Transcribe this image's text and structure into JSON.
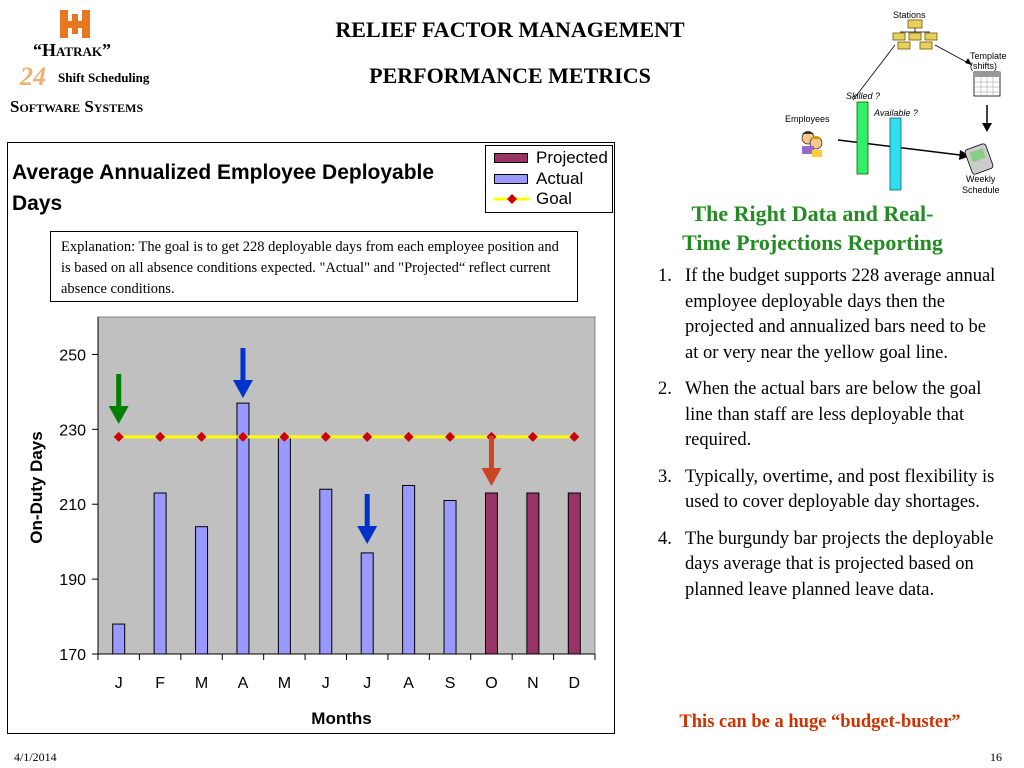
{
  "logo": {
    "brand": "“Hatrak”",
    "badge": "24",
    "tagline": "Shift Scheduling",
    "company": "Software Systems"
  },
  "header": {
    "title_line1": "RELIEF FACTOR MANAGEMENT",
    "title_line2": "PERFORMANCE METRICS"
  },
  "diagram": {
    "stations": "Stations",
    "template": "Template",
    "template_sub": "(shifts)",
    "skilled": "Skilled ?",
    "available": "Available ?",
    "employees": "Employees",
    "weekly": "Weekly",
    "schedule": "Schedule"
  },
  "explanation": "Explanation: The goal is to get 228 deployable days from each employee position and is  based on all absence conditions expected. \"Actual\" and \"Projected“ reflect current absence conditions.",
  "right_panel": {
    "heading_line1": "The Right Data and Real-",
    "heading_line2": "Time Projections Reporting",
    "notes": [
      {
        "num": "1.",
        "text": "If the budget supports 228 average annual employee deployable days then the projected and annualized bars need to be at or very near the yellow goal line."
      },
      {
        "num": "2.",
        "text": "When the actual bars are below the goal line than staff are less deployable that required."
      },
      {
        "num": "3.",
        "text": "Typically, overtime, and post flexibility is used to cover deployable day shortages."
      },
      {
        "num": "4.",
        "text": "The burgundy bar projects the deployable days average that is projected based on planned leave planned leave data."
      }
    ],
    "emphasis": "This can be a huge “budget-buster”"
  },
  "footer": {
    "date": "4/1/2014",
    "page": "16"
  },
  "colors": {
    "actual": "#9999ff",
    "projected": "#993366",
    "goal_line": "#ffff00",
    "goal_marker": "#cc0000",
    "plot_bg": "#c0c0c0",
    "heading_green": "#228b22",
    "emphasis_red": "#cc3300",
    "arrow_green": "#008000",
    "arrow_blue": "#0033cc",
    "arrow_red": "#cc4422"
  },
  "chart_data": {
    "type": "bar",
    "title": "Average Annualized Employee Deployable Days",
    "xlabel": "Months",
    "ylabel": "On-Duty Days",
    "categories": [
      "J",
      "F",
      "M",
      "A",
      "M",
      "J",
      "J",
      "A",
      "S",
      "O",
      "N",
      "D"
    ],
    "series": [
      {
        "name": "Actual",
        "type": "bar",
        "values": [
          178,
          213,
          204,
          237,
          228,
          214,
          197,
          215,
          211,
          null,
          null,
          null
        ]
      },
      {
        "name": "Projected",
        "type": "bar",
        "values": [
          null,
          null,
          null,
          null,
          null,
          null,
          null,
          null,
          null,
          213,
          213,
          213
        ]
      },
      {
        "name": "Goal",
        "type": "line",
        "values": [
          228,
          228,
          228,
          228,
          228,
          228,
          228,
          228,
          228,
          228,
          228,
          228
        ]
      }
    ],
    "ylim": [
      170,
      260
    ],
    "yticks": [
      170,
      190,
      210,
      230,
      250
    ],
    "legend_position": "top-right",
    "grid": false,
    "annotations": [
      {
        "type": "arrow",
        "month_index": 0,
        "color": "green",
        "direction": "down"
      },
      {
        "type": "arrow",
        "month_index": 3,
        "color": "blue",
        "direction": "down"
      },
      {
        "type": "arrow",
        "month_index": 6,
        "color": "blue",
        "direction": "down"
      },
      {
        "type": "arrow",
        "month_index": 9,
        "color": "red",
        "direction": "down"
      }
    ]
  }
}
